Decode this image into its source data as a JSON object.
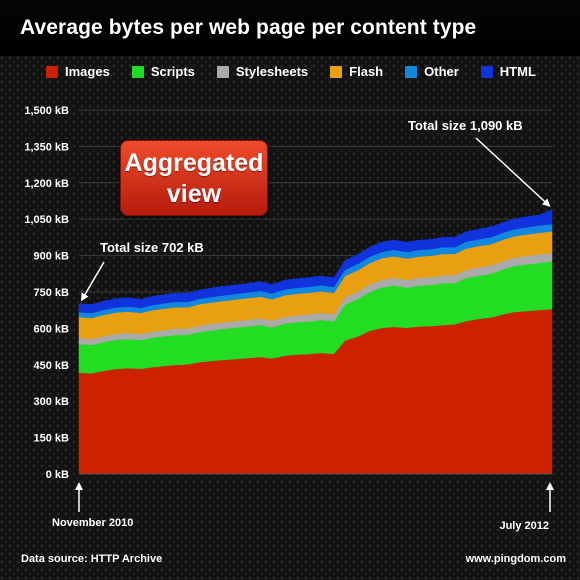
{
  "title": "Average bytes per web page per content type",
  "legend": [
    {
      "label": "Images",
      "color": "#cc2200"
    },
    {
      "label": "Scripts",
      "color": "#22dd22"
    },
    {
      "label": "Stylesheets",
      "color": "#aaaaaa"
    },
    {
      "label": "Flash",
      "color": "#e8a010"
    },
    {
      "label": "Other",
      "color": "#1188dd"
    },
    {
      "label": "HTML",
      "color": "#1133dd"
    }
  ],
  "annotation_box": {
    "line1": "Aggregated",
    "line2": "view"
  },
  "footer": {
    "source": "Data source: HTTP Archive",
    "site": "www.pingdom.com"
  },
  "chart_data": {
    "type": "area",
    "stacked": true,
    "title": "Average bytes per web page per content type",
    "ylim": [
      0,
      1500
    ],
    "y_ticks": [
      0,
      150,
      300,
      450,
      600,
      750,
      900,
      1050,
      1200,
      1350,
      1500
    ],
    "y_tick_labels": [
      "0 kB",
      "150 kB",
      "300 kB",
      "450 kB",
      "600 kB",
      "750 kB",
      "900 kB",
      "1,050 kB",
      "1,200 kB",
      "1,350 kB",
      "1,500 kB"
    ],
    "x_start_label": "November 2010",
    "x_end_label": "July 2012",
    "x": [
      "2010-11-15",
      "2010-12-01",
      "2010-12-15",
      "2011-01-01",
      "2011-01-15",
      "2011-02-01",
      "2011-02-15",
      "2011-03-01",
      "2011-03-15",
      "2011-04-01",
      "2011-04-15",
      "2011-05-01",
      "2011-05-15",
      "2011-06-01",
      "2011-06-15",
      "2011-07-01",
      "2011-07-15",
      "2011-08-01",
      "2011-08-15",
      "2011-09-01",
      "2011-09-15",
      "2011-10-01",
      "2011-10-15",
      "2011-11-01",
      "2011-11-15",
      "2011-12-01",
      "2011-12-15",
      "2012-01-01",
      "2012-01-15",
      "2012-02-01",
      "2012-02-15",
      "2012-03-01",
      "2012-03-15",
      "2012-04-01",
      "2012-04-15",
      "2012-05-01",
      "2012-05-15",
      "2012-06-01",
      "2012-06-15",
      "2012-07-01"
    ],
    "series": [
      {
        "name": "Images",
        "color": "#cc2200",
        "values": [
          418,
          415,
          425,
          433,
          436,
          434,
          440,
          445,
          449,
          452,
          461,
          466,
          470,
          474,
          478,
          482,
          476,
          488,
          492,
          495,
          499,
          495,
          550,
          568,
          590,
          602,
          606,
          603,
          608,
          610,
          614,
          617,
          630,
          640,
          645,
          658,
          668,
          672,
          676,
          680
        ]
      },
      {
        "name": "Scripts",
        "color": "#22dd22",
        "values": [
          118,
          117,
          118,
          120,
          120,
          118,
          122,
          122,
          124,
          122,
          124,
          126,
          128,
          130,
          130,
          132,
          128,
          132,
          134,
          134,
          136,
          134,
          148,
          155,
          160,
          168,
          170,
          165,
          168,
          170,
          172,
          170,
          178,
          178,
          180,
          186,
          190,
          192,
          194,
          196
        ]
      },
      {
        "name": "Stylesheets",
        "color": "#aaaaaa",
        "values": [
          24,
          24,
          24,
          25,
          25,
          25,
          25,
          26,
          26,
          26,
          27,
          27,
          27,
          27,
          28,
          28,
          28,
          28,
          28,
          29,
          29,
          29,
          30,
          30,
          31,
          31,
          32,
          32,
          32,
          32,
          33,
          33,
          33,
          34,
          34,
          34,
          34,
          35,
          35,
          35
        ]
      },
      {
        "name": "Flash",
        "color": "#e8a010",
        "values": [
          87,
          87,
          88,
          88,
          88,
          87,
          88,
          88,
          88,
          87,
          88,
          88,
          88,
          89,
          89,
          89,
          88,
          89,
          89,
          89,
          89,
          88,
          88,
          88,
          88,
          89,
          89,
          88,
          88,
          88,
          88,
          87,
          88,
          88,
          88,
          88,
          88,
          89,
          89,
          89
        ]
      },
      {
        "name": "Other",
        "color": "#1188dd",
        "values": [
          20,
          20,
          21,
          21,
          21,
          21,
          21,
          22,
          22,
          22,
          22,
          23,
          23,
          23,
          23,
          24,
          24,
          24,
          24,
          25,
          25,
          25,
          25,
          26,
          26,
          26,
          27,
          27,
          27,
          27,
          28,
          28,
          28,
          28,
          29,
          29,
          29,
          30,
          30,
          30
        ]
      },
      {
        "name": "HTML",
        "color": "#1133dd",
        "values": [
          35,
          35,
          36,
          36,
          36,
          35,
          36,
          36,
          36,
          36,
          36,
          37,
          37,
          37,
          37,
          38,
          37,
          38,
          38,
          38,
          38,
          38,
          39,
          39,
          40,
          40,
          40,
          40,
          40,
          40,
          41,
          41,
          41,
          42,
          42,
          42,
          42,
          43,
          43,
          60
        ]
      }
    ],
    "annotations": [
      {
        "text": "Total size 702 kB",
        "at": "start"
      },
      {
        "text": "Total size 1,090 kB",
        "at": "end"
      }
    ]
  }
}
